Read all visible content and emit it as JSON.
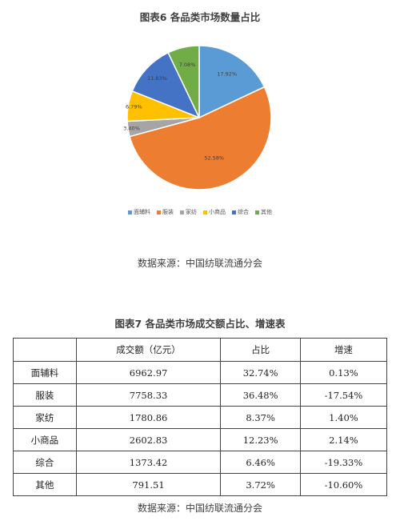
{
  "figure6": {
    "title": "图表6 各品类市场数量占比",
    "source": "数据来源：中国纺联流通分会"
  },
  "figure7": {
    "title": "图表7 各品类市场成交额占比、增速表",
    "source": "数据来源：中国纺联流通分会"
  },
  "chart_data": [
    {
      "type": "pie",
      "title": "图表6 各品类市场数量占比",
      "categories": [
        "面辅料",
        "服装",
        "家纺",
        "小商品",
        "综合",
        "其他"
      ],
      "values": [
        17.92,
        52.58,
        3.4,
        6.79,
        11.83,
        7.08
      ],
      "labels": [
        "17.92%",
        "52.58%",
        "3.40%",
        "6.79%",
        "11.83%",
        "7.08%"
      ],
      "colors": [
        "#5B9BD5",
        "#ED7D31",
        "#A5A5A5",
        "#FFC000",
        "#4472C4",
        "#70AD47"
      ],
      "legend": [
        "面辅料",
        "服装",
        "家纺",
        "小商品",
        "综合",
        "其他"
      ],
      "legend_position": "bottom"
    },
    {
      "type": "table",
      "title": "图表7 各品类市场成交额占比、增速表",
      "headers": [
        "",
        "成交额（亿元）",
        "占比",
        "增速"
      ],
      "rows": [
        [
          "面辅料",
          "6962.97",
          "32.74%",
          "0.13%"
        ],
        [
          "服装",
          "7758.33",
          "36.48%",
          "-17.54%"
        ],
        [
          "家纺",
          "1780.86",
          "8.37%",
          "1.40%"
        ],
        [
          "小商品",
          "2602.83",
          "12.23%",
          "2.14%"
        ],
        [
          "综合",
          "1373.42",
          "6.46%",
          "-19.33%"
        ],
        [
          "其他",
          "791.51",
          "3.72%",
          "-10.60%"
        ]
      ]
    }
  ]
}
